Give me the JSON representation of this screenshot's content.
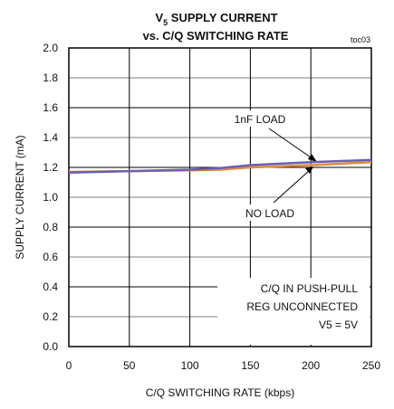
{
  "chart_data": {
    "type": "line",
    "title_main": "V",
    "title_sub": "5",
    "title_rest": " SUPPLY CURRENT",
    "title_line2": "vs. C/Q SWITCHING RATE",
    "tag": "toc03",
    "xlabel": "C/Q SWITCHING  RATE (kbps)",
    "ylabel": "SUPPLY CURRENT (mA)",
    "xlim": [
      0,
      250
    ],
    "ylim": [
      0.0,
      2.0
    ],
    "x_ticks": [
      "0",
      "50",
      "100",
      "150",
      "200",
      "250"
    ],
    "y_ticks": [
      "0.0",
      "0.2",
      "0.4",
      "0.6",
      "0.8",
      "1.0",
      "1.2",
      "1.4",
      "1.6",
      "1.8",
      "2.0"
    ],
    "grid": true,
    "series": [
      {
        "name": "NO LOAD",
        "color": "#e08a3c",
        "x": [
          0,
          50,
          100,
          125,
          150,
          200,
          250
        ],
        "y": [
          1.17,
          1.175,
          1.18,
          1.185,
          1.2,
          1.215,
          1.235
        ]
      },
      {
        "name": "1nF LOAD",
        "color": "#6a5fb0",
        "x": [
          0,
          50,
          100,
          125,
          150,
          200,
          250
        ],
        "y": [
          1.165,
          1.175,
          1.185,
          1.195,
          1.215,
          1.235,
          1.25
        ]
      }
    ],
    "annotations": {
      "load_1nf": "1nF LOAD",
      "no_load": "NO LOAD",
      "cond1": "C/Q IN PUSH-PULL",
      "cond2": "REG UNCONNECTED",
      "cond3": "V5 = 5V"
    }
  }
}
